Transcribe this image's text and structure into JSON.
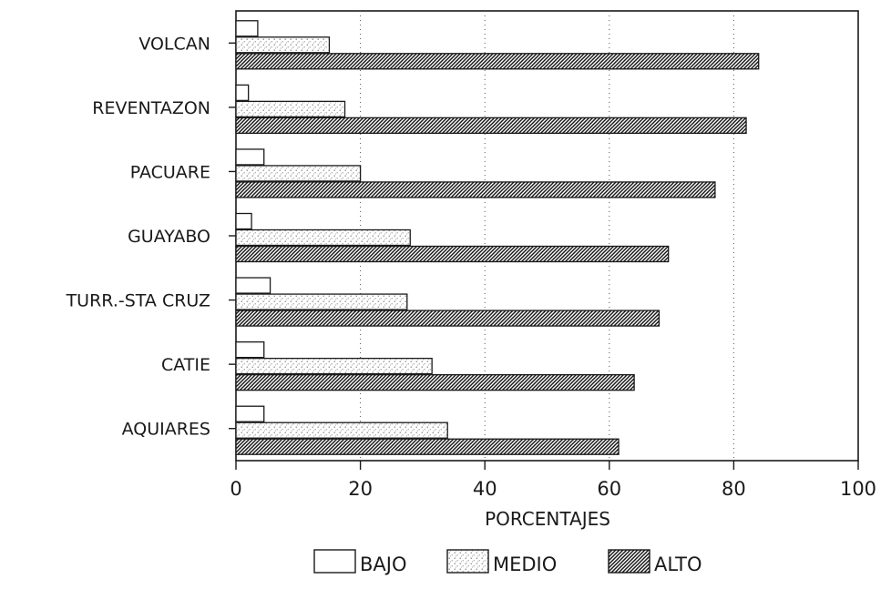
{
  "chart_data": {
    "type": "bar",
    "orientation": "horizontal",
    "categories": [
      "VOLCAN",
      "REVENTAZON",
      "PACUARE",
      "GUAYABO",
      "TURR.-STA CRUZ",
      "CATIE",
      "AQUIARES"
    ],
    "series": [
      {
        "name": "BAJO",
        "pattern": "empty",
        "values": [
          3.5,
          2,
          4.5,
          2.5,
          5.5,
          4.5,
          4.5
        ]
      },
      {
        "name": "MEDIO",
        "pattern": "stipple",
        "values": [
          15,
          17.5,
          20,
          28,
          27.5,
          31.5,
          34
        ]
      },
      {
        "name": "ALTO",
        "pattern": "hatched",
        "values": [
          84,
          82,
          77,
          69.5,
          68,
          64,
          61.5
        ]
      }
    ],
    "xlabel": "PORCENTAJES",
    "ylabel": "",
    "xlim": [
      0,
      100
    ],
    "xticks": [
      0,
      20,
      40,
      60,
      80,
      100
    ],
    "grid": "vertical-dotted",
    "legend_position": "bottom"
  }
}
